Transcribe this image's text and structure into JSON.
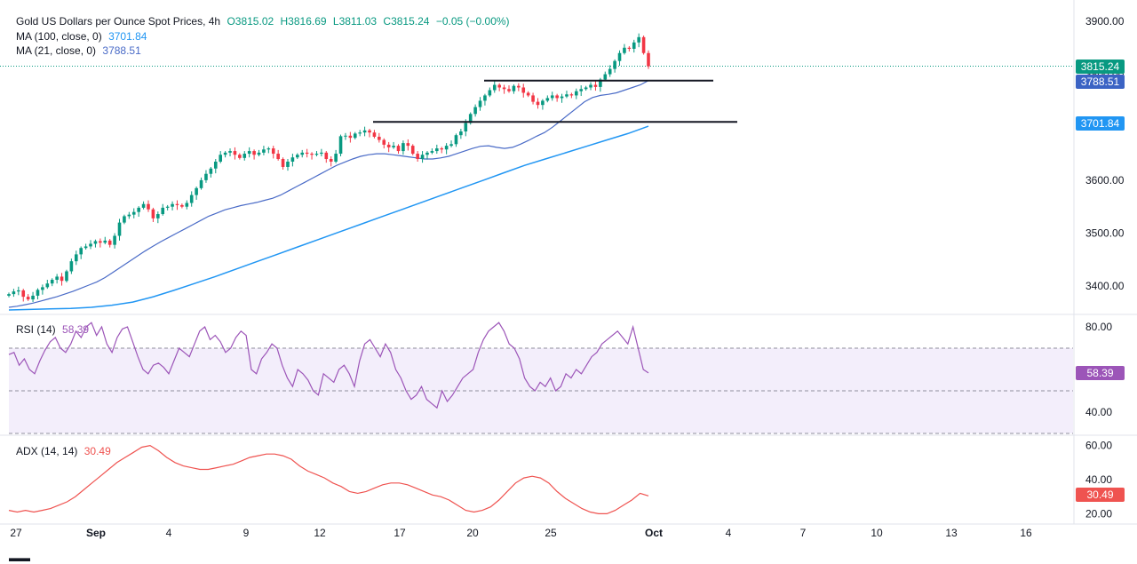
{
  "colors": {
    "up": "#089981",
    "down": "#f23645",
    "ma100": "#2196f3",
    "ma21": "#4a6bc7",
    "rsi": "#9c55b8",
    "adx": "#ef5350",
    "level_line": "#131722",
    "rsi_band": "#f3eefb"
  },
  "legend": {
    "title": "Gold US Dollars per Ounce Spot Prices, 4h",
    "open": "O3815.02",
    "high": "H3816.69",
    "low": "L3811.03",
    "close": "C3815.24",
    "change": "−0.05 (−0.00%)",
    "ma100_label": "MA (100, close, 0)",
    "ma100_value": "3701.84",
    "ma21_label": "MA (21, close, 0)",
    "ma21_value": "3788.51",
    "rsi_label": "RSI (14)",
    "rsi_value": "58.39",
    "adx_label": "ADX (14, 14)",
    "adx_value": "30.49"
  },
  "price_tags": {
    "last": "3815.24",
    "ma21": "3788.51",
    "ma100": "3701.84",
    "rsi": "58.39",
    "adx": "30.49"
  },
  "chart_data": [
    {
      "type": "candlestick",
      "title": "Gold US Dollars per Ounce Spot Prices, 4h",
      "ylim": [
        3350,
        3920
      ],
      "y_ticks": [
        "3900.00",
        "3800.00",
        "3700.00",
        "3600.00",
        "3500.00",
        "3400.00"
      ],
      "x_ticks": [
        "27",
        "Sep",
        "4",
        "9",
        "12",
        "17",
        "20",
        "25",
        "Oct",
        "4",
        "7",
        "10",
        "13",
        "16"
      ],
      "candles_note": "approximate 4h OHLC closes, Aug 27 – Sep 30",
      "closes": [
        3385,
        3390,
        3392,
        3380,
        3375,
        3382,
        3393,
        3398,
        3405,
        3412,
        3418,
        3410,
        3428,
        3447,
        3460,
        3472,
        3475,
        3480,
        3485,
        3482,
        3486,
        3478,
        3495,
        3520,
        3532,
        3535,
        3540,
        3548,
        3555,
        3545,
        3528,
        3536,
        3548,
        3550,
        3555,
        3553,
        3550,
        3557,
        3572,
        3585,
        3600,
        3612,
        3622,
        3635,
        3648,
        3652,
        3655,
        3648,
        3642,
        3650,
        3655,
        3648,
        3652,
        3658,
        3660,
        3650,
        3640,
        3625,
        3635,
        3643,
        3648,
        3652,
        3650,
        3648,
        3650,
        3652,
        3640,
        3635,
        3650,
        3683,
        3684,
        3680,
        3688,
        3690,
        3694,
        3690,
        3682,
        3676,
        3667,
        3662,
        3665,
        3655,
        3670,
        3665,
        3650,
        3640,
        3648,
        3652,
        3655,
        3660,
        3658,
        3665,
        3668,
        3685,
        3692,
        3708,
        3725,
        3738,
        3750,
        3760,
        3770,
        3780,
        3775,
        3772,
        3768,
        3778,
        3775,
        3765,
        3760,
        3748,
        3742,
        3750,
        3755,
        3760,
        3755,
        3758,
        3762,
        3760,
        3768,
        3772,
        3775,
        3780,
        3776,
        3790,
        3800,
        3810,
        3825,
        3840,
        3850,
        3848,
        3860,
        3870,
        3840,
        3815
      ],
      "ma21": [
        3360,
        3362,
        3365,
        3368,
        3372,
        3376,
        3380,
        3385,
        3390,
        3396,
        3402,
        3408,
        3416,
        3426,
        3436,
        3446,
        3456,
        3466,
        3475,
        3484,
        3492,
        3500,
        3508,
        3516,
        3524,
        3532,
        3538,
        3544,
        3548,
        3552,
        3555,
        3558,
        3562,
        3566,
        3572,
        3580,
        3588,
        3596,
        3604,
        3612,
        3620,
        3628,
        3634,
        3640,
        3645,
        3648,
        3650,
        3650,
        3648,
        3646,
        3644,
        3642,
        3640,
        3640,
        3642,
        3645,
        3650,
        3655,
        3660,
        3664,
        3665,
        3662,
        3660,
        3662,
        3668,
        3675,
        3683,
        3690,
        3700,
        3712,
        3724,
        3736,
        3748,
        3756,
        3760,
        3762,
        3765,
        3770,
        3775,
        3780,
        3788
      ],
      "ma100": [
        3355,
        3356,
        3357,
        3358,
        3360,
        3364,
        3370,
        3380,
        3392,
        3405,
        3418,
        3432,
        3446,
        3460,
        3474,
        3488,
        3502,
        3516,
        3530,
        3544,
        3558,
        3572,
        3586,
        3600,
        3614,
        3628,
        3640,
        3652,
        3664,
        3676,
        3688,
        3701.84
      ],
      "levels": [
        3788,
        3710
      ]
    },
    {
      "type": "line",
      "title": "RSI (14)",
      "ylim": [
        30,
        85
      ],
      "y_ticks": [
        "80.00",
        "40.00"
      ],
      "bands": [
        70,
        50,
        30
      ],
      "values": [
        67,
        68,
        62,
        65,
        60,
        58,
        64,
        69,
        73,
        75,
        70,
        68,
        72,
        78,
        75,
        80,
        82,
        76,
        80,
        72,
        68,
        75,
        79,
        80,
        73,
        66,
        60,
        58,
        62,
        63,
        61,
        58,
        64,
        70,
        68,
        66,
        72,
        78,
        80,
        74,
        76,
        73,
        68,
        70,
        75,
        78,
        76,
        60,
        58,
        65,
        68,
        72,
        70,
        62,
        56,
        52,
        60,
        58,
        55,
        50,
        48,
        58,
        56,
        54,
        60,
        62,
        58,
        52,
        64,
        72,
        74,
        70,
        66,
        72,
        68,
        60,
        56,
        50,
        46,
        48,
        52,
        46,
        44,
        42,
        50,
        45,
        48,
        52,
        56,
        58,
        60,
        68,
        74,
        78,
        80,
        82,
        78,
        72,
        70,
        65,
        56,
        52,
        50,
        54,
        52,
        56,
        50,
        52,
        58,
        56,
        60,
        58,
        62,
        66,
        68,
        72,
        74,
        76,
        78,
        75,
        72,
        80,
        70,
        60,
        58.39
      ]
    },
    {
      "type": "line",
      "title": "ADX (14, 14)",
      "ylim": [
        15,
        65
      ],
      "y_ticks": [
        "60.00",
        "40.00",
        "20.00"
      ],
      "values": [
        22,
        21,
        22,
        21,
        22,
        23,
        25,
        27,
        30,
        34,
        38,
        42,
        46,
        50,
        53,
        56,
        59,
        60,
        57,
        53,
        50,
        48,
        47,
        46,
        46,
        47,
        48,
        49,
        51,
        53,
        54,
        55,
        55,
        54,
        52,
        48,
        45,
        43,
        41,
        38,
        36,
        33,
        32,
        33,
        35,
        37,
        38,
        38,
        37,
        35,
        33,
        31,
        30,
        28,
        25,
        22,
        21,
        22,
        24,
        28,
        33,
        38,
        41,
        42,
        41,
        38,
        33,
        29,
        26,
        23,
        21,
        20,
        20,
        22,
        25,
        28,
        32,
        30.49
      ]
    }
  ]
}
